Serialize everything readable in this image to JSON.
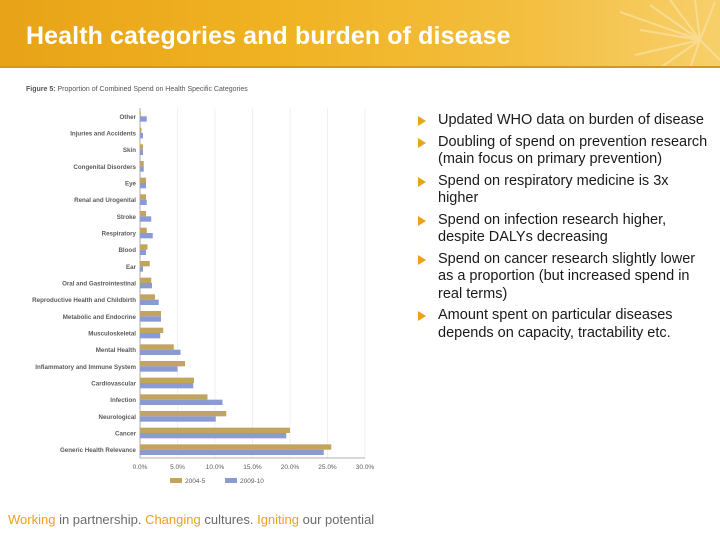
{
  "header": {
    "title": "Health categories and burden of disease"
  },
  "figure_caption_bold": "Figure 5:",
  "figure_caption_rest": " Proportion of Combined Spend on Health Specific Categories",
  "bullets": [
    "Updated WHO data on burden of disease",
    "Doubling of spend on prevention research (main focus on primary prevention)",
    "Spend on respiratory medicine is 3x higher",
    "Spend on infection research higher, despite DALYs decreasing",
    "Spend on cancer research slightly lower as a proportion (but increased spend in real terms)",
    "Amount spent on particular diseases depends on capacity, tractability etc."
  ],
  "footer": {
    "parts": [
      {
        "text": "Working ",
        "tone": "orange"
      },
      {
        "text": "in partnership. ",
        "tone": "gray"
      },
      {
        "text": "Changing ",
        "tone": "orange"
      },
      {
        "text": "cultures. ",
        "tone": "gray"
      },
      {
        "text": "Igniting ",
        "tone": "orange"
      },
      {
        "text": "our potential",
        "tone": "gray"
      }
    ]
  },
  "colors": {
    "accent": "#e8a317",
    "series_2004": "#c2a45f",
    "series_2009": "#8b9ad3"
  },
  "chart_data": {
    "type": "bar",
    "orientation": "horizontal",
    "categories": [
      "Other",
      "Injuries and Accidents",
      "Skin",
      "Congenital Disorders",
      "Eye",
      "Renal and Urogenital",
      "Stroke",
      "Respiratory",
      "Blood",
      "Ear",
      "Oral and Gastrointestinal",
      "Reproductive Health and Childbirth",
      "Metabolic and Endocrine",
      "Musculoskeletal",
      "Mental Health",
      "Inflammatory and Immune System",
      "Cardiovascular",
      "Infection",
      "Neurological",
      "Cancer",
      "Generic Health Relevance"
    ],
    "series": [
      {
        "name": "2004-5",
        "values": [
          0.1,
          0.2,
          0.4,
          0.5,
          0.8,
          0.8,
          0.8,
          0.9,
          1.0,
          1.3,
          1.5,
          2.0,
          2.8,
          3.1,
          4.5,
          6.0,
          7.2,
          9.0,
          11.5,
          20.0,
          25.5
        ]
      },
      {
        "name": "2009-10",
        "values": [
          0.9,
          0.4,
          0.4,
          0.5,
          0.8,
          0.9,
          1.5,
          1.7,
          0.8,
          0.4,
          1.6,
          2.5,
          2.8,
          2.7,
          5.4,
          5.0,
          7.1,
          11.0,
          10.1,
          19.5,
          24.5
        ]
      }
    ],
    "xlim": [
      0,
      30
    ],
    "xticks": [
      "0.0%",
      "5.0%",
      "10.0%",
      "15.0%",
      "20.0%",
      "25.0%",
      "30.0%"
    ],
    "legend": [
      "2004-5",
      "2009-10"
    ],
    "legend_position": "bottom"
  }
}
